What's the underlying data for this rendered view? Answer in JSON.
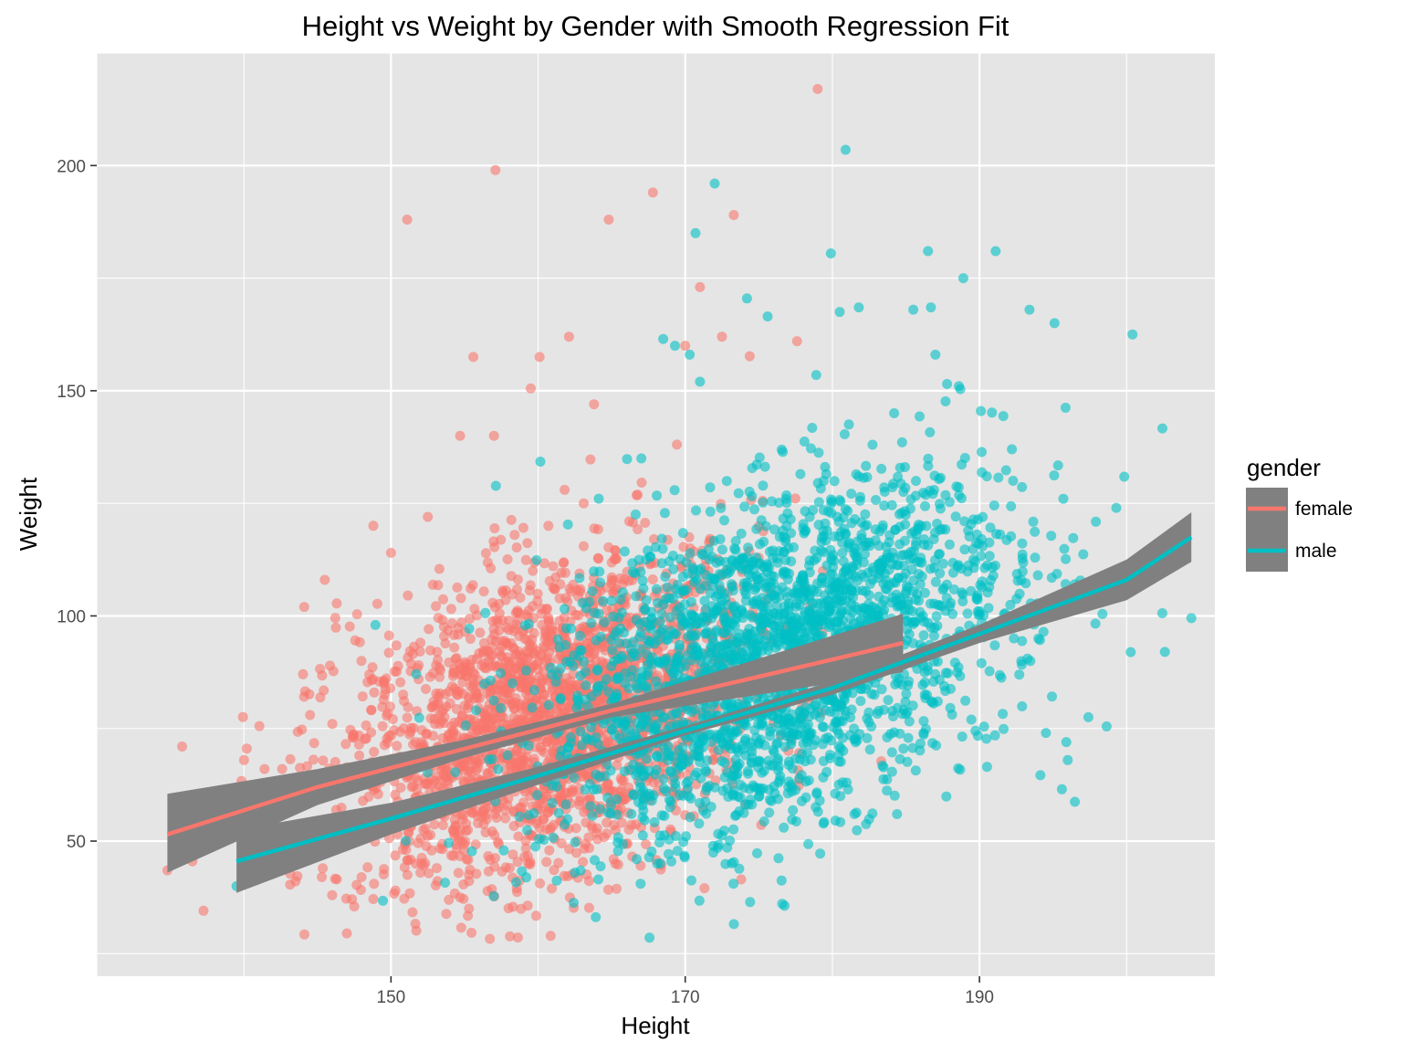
{
  "chart_data": {
    "type": "scatter",
    "title": "Height vs Weight by Gender with Smooth Regression Fit",
    "xlabel": "Height",
    "ylabel": "Weight",
    "xlim": [
      130,
      206
    ],
    "ylim": [
      20,
      225
    ],
    "x_ticks": [
      150,
      170,
      190
    ],
    "y_ticks": [
      50,
      100,
      150,
      200
    ],
    "x_tick_labels": [
      "150",
      "170",
      "190"
    ],
    "y_tick_labels": [
      "50",
      "100",
      "150",
      "200"
    ],
    "grid": true,
    "legend": {
      "title": "gender",
      "position": "right",
      "entries": [
        "female",
        "male"
      ]
    },
    "colors": {
      "female": "#F8766D",
      "male": "#00BFC4",
      "confidence_band": "#808080",
      "panel_background": "#E5E5E5",
      "grid": "#FFFFFF"
    },
    "series": [
      {
        "name": "female",
        "color": "#F8766D",
        "point_summary": {
          "count_approx": 2500,
          "x_mean": 161,
          "x_sd": 7,
          "y_mean": 75,
          "y_sd": 20
        },
        "points": [
          [
            134.8,
            43.5
          ],
          [
            135.8,
            71.0
          ],
          [
            136.5,
            45.5
          ],
          [
            151.1,
            188.0
          ],
          [
            157.1,
            199.0
          ],
          [
            164.8,
            188.0
          ],
          [
            167.8,
            194.0
          ],
          [
            173.3,
            189.0
          ],
          [
            179.0,
            217.0
          ],
          [
            171.0,
            173.0
          ],
          [
            155.6,
            157.5
          ],
          [
            160.1,
            157.5
          ],
          [
            159.5,
            150.5
          ],
          [
            162.1,
            162.0
          ],
          [
            163.8,
            147.0
          ],
          [
            170.0,
            160.0
          ],
          [
            172.5,
            162.0
          ],
          [
            177.6,
            161.0
          ],
          [
            147.0,
            29.5
          ],
          [
            147.5,
            35.5
          ],
          [
            155.3,
            35.0
          ],
          [
            173.8,
            41.5
          ],
          [
            154.7,
            37.5
          ],
          [
            148.8,
            120.0
          ],
          [
            154.7,
            140.0
          ],
          [
            145.5,
            108.0
          ],
          [
            157.0,
            140.0
          ],
          [
            150.0,
            114.0
          ],
          [
            144.1,
            102.0
          ],
          [
            152.5,
            122.0
          ],
          [
            141.4,
            66.0
          ],
          [
            142.6,
            66.0
          ],
          [
            143.2,
            60.0
          ],
          [
            142.6,
            56.0
          ],
          [
            144.5,
            78.0
          ],
          [
            145.3,
            42.0
          ],
          [
            146.0,
            38.0
          ],
          [
            148.0,
            42.0
          ],
          [
            150.3,
            39.0
          ],
          [
            152.0,
            43.0
          ],
          [
            160.7,
            120.0
          ],
          [
            163.1,
            125.0
          ],
          [
            166.2,
            121.0
          ],
          [
            158.4,
            118.0
          ],
          [
            161.8,
            128.0
          ]
        ],
        "fit_line": [
          [
            134.8,
            51.5
          ],
          [
            145,
            62.0
          ],
          [
            155,
            70.5
          ],
          [
            165,
            79.0
          ],
          [
            175,
            86.5
          ],
          [
            184.8,
            94.0
          ]
        ],
        "band_lower": [
          [
            134.8,
            43.0
          ],
          [
            145,
            58.0
          ],
          [
            155,
            68.5
          ],
          [
            165,
            77.5
          ],
          [
            175,
            82.5
          ],
          [
            184.8,
            87.5
          ]
        ],
        "band_upper": [
          [
            134.8,
            60.5
          ],
          [
            145,
            66.0
          ],
          [
            155,
            72.5
          ],
          [
            165,
            80.5
          ],
          [
            175,
            90.5
          ],
          [
            184.8,
            100.5
          ]
        ]
      },
      {
        "name": "male",
        "color": "#00BFC4",
        "point_summary": {
          "count_approx": 2500,
          "x_mean": 176,
          "x_sd": 8,
          "y_mean": 88,
          "y_sd": 22
        },
        "points": [
          [
            139.5,
            40.0
          ],
          [
            180.9,
            203.5
          ],
          [
            172.0,
            196.0
          ],
          [
            170.7,
            185.0
          ],
          [
            179.9,
            180.5
          ],
          [
            186.5,
            181.0
          ],
          [
            191.1,
            181.0
          ],
          [
            188.9,
            175.0
          ],
          [
            193.4,
            168.0
          ],
          [
            195.1,
            165.0
          ],
          [
            200.4,
            162.5
          ],
          [
            174.2,
            170.5
          ],
          [
            175.6,
            166.5
          ],
          [
            180.5,
            167.5
          ],
          [
            181.8,
            168.5
          ],
          [
            185.5,
            168.0
          ],
          [
            186.7,
            168.5
          ],
          [
            204.4,
            99.5
          ],
          [
            202.6,
            92.0
          ],
          [
            199.8,
            105.0
          ],
          [
            199.3,
            124.0
          ],
          [
            195.7,
            126.0
          ],
          [
            197.4,
            77.5
          ],
          [
            195.9,
            72.0
          ],
          [
            196.0,
            68.0
          ],
          [
            195.6,
            61.5
          ],
          [
            164.1,
            41.5
          ],
          [
            168.1,
            45.0
          ],
          [
            172.2,
            48.5
          ],
          [
            176.7,
            53.0
          ],
          [
            181.5,
            56.0
          ],
          [
            184.4,
            56.0
          ],
          [
            162.5,
            43.0
          ],
          [
            166.7,
            46.0
          ],
          [
            187.0,
            158.0
          ],
          [
            184.2,
            145.0
          ],
          [
            190.1,
            145.5
          ],
          [
            190.5,
            131.0
          ],
          [
            192.2,
            137.0
          ],
          [
            188.6,
            151.0
          ],
          [
            168.5,
            161.5
          ],
          [
            169.3,
            160.0
          ],
          [
            170.3,
            158.0
          ],
          [
            171.0,
            152.0
          ],
          [
            178.9,
            153.5
          ]
        ],
        "fit_line": [
          [
            139.5,
            45.5
          ],
          [
            150,
            55.0
          ],
          [
            160,
            64.5
          ],
          [
            170,
            74.5
          ],
          [
            180,
            84.0
          ],
          [
            190,
            96.0
          ],
          [
            200,
            108.0
          ],
          [
            204.4,
            117.5
          ]
        ],
        "band_lower": [
          [
            139.5,
            38.5
          ],
          [
            150,
            51.5
          ],
          [
            160,
            62.5
          ],
          [
            170,
            73.5
          ],
          [
            180,
            82.5
          ],
          [
            190,
            94.0
          ],
          [
            200,
            103.5
          ],
          [
            204.4,
            112.0
          ]
        ],
        "band_upper": [
          [
            139.5,
            52.5
          ],
          [
            150,
            58.5
          ],
          [
            160,
            66.5
          ],
          [
            170,
            75.5
          ],
          [
            180,
            85.5
          ],
          [
            190,
            98.0
          ],
          [
            200,
            112.5
          ],
          [
            204.4,
            123.0
          ]
        ]
      }
    ]
  }
}
